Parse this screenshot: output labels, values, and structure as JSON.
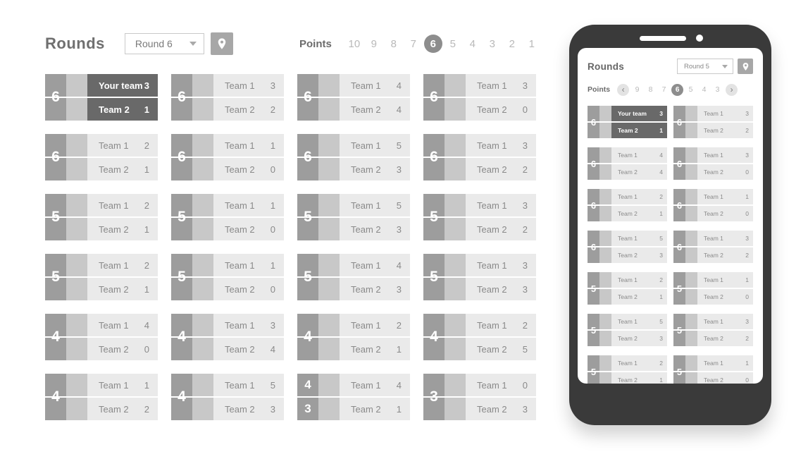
{
  "colors": {
    "badge_gray": "#9d9d9d",
    "strip_gray": "#c8c8c8",
    "row_bg": "#eaeaea",
    "row_text": "#8a8a8a",
    "highlight_bg": "#696969",
    "highlight_text": "#ffffff",
    "selected_point_bg": "#8d8d8d",
    "device_body": "#3a3a3a"
  },
  "icons": {
    "dropdown_caret": "chevron-down",
    "pin_button": "location-pin",
    "points_prev": "chevron-left",
    "points_next": "chevron-right"
  },
  "desktop": {
    "title": "Rounds",
    "round_dropdown": {
      "value": "Round 6"
    },
    "points": {
      "label": "Points",
      "options": [
        "10",
        "9",
        "8",
        "7",
        "6",
        "5",
        "4",
        "3",
        "2",
        "1"
      ],
      "selected": "6"
    },
    "matches": [
      {
        "rounds": [
          "6"
        ],
        "highlight": true,
        "teams": [
          {
            "name": "Your team",
            "score": "3"
          },
          {
            "name": "Team 2",
            "score": "1"
          }
        ]
      },
      {
        "rounds": [
          "6"
        ],
        "highlight": false,
        "teams": [
          {
            "name": "Team 1",
            "score": "3"
          },
          {
            "name": "Team 2",
            "score": "2"
          }
        ]
      },
      {
        "rounds": [
          "6"
        ],
        "highlight": false,
        "teams": [
          {
            "name": "Team 1",
            "score": "4"
          },
          {
            "name": "Team 2",
            "score": "4"
          }
        ]
      },
      {
        "rounds": [
          "6"
        ],
        "highlight": false,
        "teams": [
          {
            "name": "Team 1",
            "score": "3"
          },
          {
            "name": "Team 2",
            "score": "0"
          }
        ]
      },
      {
        "rounds": [
          "6"
        ],
        "highlight": false,
        "teams": [
          {
            "name": "Team 1",
            "score": "2"
          },
          {
            "name": "Team 2",
            "score": "1"
          }
        ]
      },
      {
        "rounds": [
          "6"
        ],
        "highlight": false,
        "teams": [
          {
            "name": "Team 1",
            "score": "1"
          },
          {
            "name": "Team 2",
            "score": "0"
          }
        ]
      },
      {
        "rounds": [
          "6"
        ],
        "highlight": false,
        "teams": [
          {
            "name": "Team 1",
            "score": "5"
          },
          {
            "name": "Team 2",
            "score": "3"
          }
        ]
      },
      {
        "rounds": [
          "6"
        ],
        "highlight": false,
        "teams": [
          {
            "name": "Team 1",
            "score": "3"
          },
          {
            "name": "Team 2",
            "score": "2"
          }
        ]
      },
      {
        "rounds": [
          "5"
        ],
        "highlight": false,
        "teams": [
          {
            "name": "Team 1",
            "score": "2"
          },
          {
            "name": "Team 2",
            "score": "1"
          }
        ]
      },
      {
        "rounds": [
          "5"
        ],
        "highlight": false,
        "teams": [
          {
            "name": "Team 1",
            "score": "1"
          },
          {
            "name": "Team 2",
            "score": "0"
          }
        ]
      },
      {
        "rounds": [
          "5"
        ],
        "highlight": false,
        "teams": [
          {
            "name": "Team 1",
            "score": "5"
          },
          {
            "name": "Team 2",
            "score": "3"
          }
        ]
      },
      {
        "rounds": [
          "5"
        ],
        "highlight": false,
        "teams": [
          {
            "name": "Team 1",
            "score": "3"
          },
          {
            "name": "Team 2",
            "score": "2"
          }
        ]
      },
      {
        "rounds": [
          "5"
        ],
        "highlight": false,
        "teams": [
          {
            "name": "Team 1",
            "score": "2"
          },
          {
            "name": "Team 2",
            "score": "1"
          }
        ]
      },
      {
        "rounds": [
          "5"
        ],
        "highlight": false,
        "teams": [
          {
            "name": "Team 1",
            "score": "1"
          },
          {
            "name": "Team 2",
            "score": "0"
          }
        ]
      },
      {
        "rounds": [
          "5"
        ],
        "highlight": false,
        "teams": [
          {
            "name": "Team 1",
            "score": "4"
          },
          {
            "name": "Team 2",
            "score": "3"
          }
        ]
      },
      {
        "rounds": [
          "5"
        ],
        "highlight": false,
        "teams": [
          {
            "name": "Team 1",
            "score": "3"
          },
          {
            "name": "Team 2",
            "score": "3"
          }
        ]
      },
      {
        "rounds": [
          "4"
        ],
        "highlight": false,
        "teams": [
          {
            "name": "Team 1",
            "score": "4"
          },
          {
            "name": "Team 2",
            "score": "0"
          }
        ]
      },
      {
        "rounds": [
          "4"
        ],
        "highlight": false,
        "teams": [
          {
            "name": "Team 1",
            "score": "3"
          },
          {
            "name": "Team 2",
            "score": "4"
          }
        ]
      },
      {
        "rounds": [
          "4"
        ],
        "highlight": false,
        "teams": [
          {
            "name": "Team 1",
            "score": "2"
          },
          {
            "name": "Team 2",
            "score": "1"
          }
        ]
      },
      {
        "rounds": [
          "4"
        ],
        "highlight": false,
        "teams": [
          {
            "name": "Team 1",
            "score": "2"
          },
          {
            "name": "Team 2",
            "score": "5"
          }
        ]
      },
      {
        "rounds": [
          "4"
        ],
        "highlight": false,
        "teams": [
          {
            "name": "Team 1",
            "score": "1"
          },
          {
            "name": "Team 2",
            "score": "2"
          }
        ]
      },
      {
        "rounds": [
          "4"
        ],
        "highlight": false,
        "teams": [
          {
            "name": "Team 1",
            "score": "5"
          },
          {
            "name": "Team 2",
            "score": "3"
          }
        ]
      },
      {
        "rounds": [
          "4",
          "3"
        ],
        "highlight": false,
        "teams": [
          {
            "name": "Team 1",
            "score": "4"
          },
          {
            "name": "Team 2",
            "score": "1"
          }
        ]
      },
      {
        "rounds": [
          "3"
        ],
        "highlight": false,
        "teams": [
          {
            "name": "Team 1",
            "score": "0"
          },
          {
            "name": "Team 2",
            "score": "3"
          }
        ]
      }
    ]
  },
  "device": {
    "title": "Rounds",
    "round_dropdown": {
      "value": "Round 5"
    },
    "points": {
      "label": "Points",
      "prev": "‹",
      "next": "›",
      "options": [
        "9",
        "8",
        "7",
        "6",
        "5",
        "4",
        "3"
      ],
      "selected": "6"
    },
    "matches": [
      {
        "rounds": [
          "6"
        ],
        "highlight": true,
        "teams": [
          {
            "name": "Your team",
            "score": "3"
          },
          {
            "name": "Team 2",
            "score": "1"
          }
        ]
      },
      {
        "rounds": [
          "6"
        ],
        "highlight": false,
        "teams": [
          {
            "name": "Team 1",
            "score": "3"
          },
          {
            "name": "Team 2",
            "score": "2"
          }
        ]
      },
      {
        "rounds": [
          "6"
        ],
        "highlight": false,
        "teams": [
          {
            "name": "Team 1",
            "score": "4"
          },
          {
            "name": "Team 2",
            "score": "4"
          }
        ]
      },
      {
        "rounds": [
          "6"
        ],
        "highlight": false,
        "teams": [
          {
            "name": "Team 1",
            "score": "3"
          },
          {
            "name": "Team 2",
            "score": "0"
          }
        ]
      },
      {
        "rounds": [
          "6"
        ],
        "highlight": false,
        "teams": [
          {
            "name": "Team 1",
            "score": "2"
          },
          {
            "name": "Team 2",
            "score": "1"
          }
        ]
      },
      {
        "rounds": [
          "6"
        ],
        "highlight": false,
        "teams": [
          {
            "name": "Team 1",
            "score": "1"
          },
          {
            "name": "Team 2",
            "score": "0"
          }
        ]
      },
      {
        "rounds": [
          "6"
        ],
        "highlight": false,
        "teams": [
          {
            "name": "Team 1",
            "score": "5"
          },
          {
            "name": "Team 2",
            "score": "3"
          }
        ]
      },
      {
        "rounds": [
          "6"
        ],
        "highlight": false,
        "teams": [
          {
            "name": "Team 1",
            "score": "3"
          },
          {
            "name": "Team 2",
            "score": "2"
          }
        ]
      },
      {
        "rounds": [
          "5"
        ],
        "highlight": false,
        "teams": [
          {
            "name": "Team 1",
            "score": "2"
          },
          {
            "name": "Team 2",
            "score": "1"
          }
        ]
      },
      {
        "rounds": [
          "5"
        ],
        "highlight": false,
        "teams": [
          {
            "name": "Team 1",
            "score": "1"
          },
          {
            "name": "Team 2",
            "score": "0"
          }
        ]
      },
      {
        "rounds": [
          "5"
        ],
        "highlight": false,
        "teams": [
          {
            "name": "Team 1",
            "score": "5"
          },
          {
            "name": "Team 2",
            "score": "3"
          }
        ]
      },
      {
        "rounds": [
          "5"
        ],
        "highlight": false,
        "teams": [
          {
            "name": "Team 1",
            "score": "3"
          },
          {
            "name": "Team 2",
            "score": "2"
          }
        ]
      },
      {
        "rounds": [
          "5"
        ],
        "highlight": false,
        "teams": [
          {
            "name": "Team 1",
            "score": "2"
          },
          {
            "name": "Team 2",
            "score": "1"
          }
        ]
      },
      {
        "rounds": [
          "5"
        ],
        "highlight": false,
        "teams": [
          {
            "name": "Team 1",
            "score": "1"
          },
          {
            "name": "Team 2",
            "score": "0"
          }
        ]
      }
    ]
  }
}
